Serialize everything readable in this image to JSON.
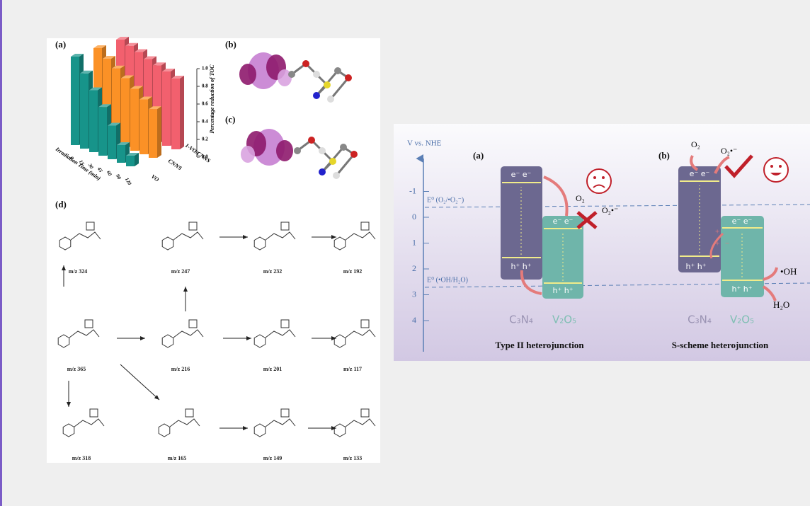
{
  "left_figure": {
    "panel_a": {
      "label": "(a)",
      "x_axis_label": "Irradiation Time (min)",
      "z_axis_label": "Percentage reduction of TOC",
      "times": [
        "0",
        "15",
        "30",
        "45",
        "60",
        "90",
        "120"
      ],
      "zticks": [
        {
          "value": 0,
          "label": "0.0"
        },
        {
          "value": 0.2,
          "label": "0.2"
        },
        {
          "value": 0.4,
          "label": "0.4"
        },
        {
          "value": 0.6,
          "label": "0.6"
        },
        {
          "value": 0.8,
          "label": "0.8"
        },
        {
          "value": 1,
          "label": "1.0"
        }
      ],
      "series": [
        {
          "name": "VO",
          "color": "#f2606e",
          "values": [
            1.0,
            0.97,
            0.94,
            0.9,
            0.87,
            0.84,
            0.8
          ]
        },
        {
          "name": "CNNS",
          "color": "#fb9126",
          "values": [
            1.0,
            0.92,
            0.85,
            0.78,
            0.7,
            0.62,
            0.55
          ]
        },
        {
          "name": "1-VO/CNNS",
          "color": "#17948a",
          "values": [
            1.0,
            0.85,
            0.7,
            0.55,
            0.38,
            0.2,
            0.12
          ]
        }
      ]
    },
    "panel_b": {
      "label": "(b)"
    },
    "panel_c": {
      "label": "(c)"
    },
    "panel_d": {
      "label": "(d)",
      "products": [
        "m/z 324",
        "m/z 247",
        "m/z 232",
        "m/z 192",
        "m/z 365",
        "m/z 216",
        "m/z 201",
        "m/z 117",
        "m/z 318",
        "m/z 165",
        "m/z 149",
        "m/z 133"
      ]
    }
  },
  "right_figure": {
    "axis_label": "V vs. NHE",
    "ticks": [
      -1,
      0,
      1,
      2,
      3,
      4
    ],
    "panel_a": {
      "label": "(a)",
      "title": "Type II heterojunction"
    },
    "panel_b": {
      "label": "(b)",
      "title": "S-scheme heterojunction"
    },
    "potential_o2": "E⁰ (O₂/•O₂⁻)",
    "potential_oh": "E⁰ (•OH/H₂O)",
    "c3n4": "C₃N₄",
    "v2o5": "V₂O₅",
    "electrons": "e⁻ e⁻",
    "holes": "h⁺ h⁺",
    "o2": "O₂",
    "superoxide": "O₂•⁻",
    "hydroxyl": "•OH",
    "water": "H₂O"
  }
}
